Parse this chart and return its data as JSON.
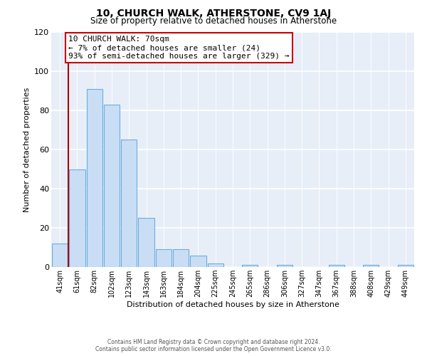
{
  "title": "10, CHURCH WALK, ATHERSTONE, CV9 1AJ",
  "subtitle": "Size of property relative to detached houses in Atherstone",
  "xlabel": "Distribution of detached houses by size in Atherstone",
  "ylabel": "Number of detached properties",
  "bar_labels": [
    "41sqm",
    "61sqm",
    "82sqm",
    "102sqm",
    "123sqm",
    "143sqm",
    "163sqm",
    "184sqm",
    "204sqm",
    "225sqm",
    "245sqm",
    "265sqm",
    "286sqm",
    "306sqm",
    "327sqm",
    "347sqm",
    "367sqm",
    "388sqm",
    "408sqm",
    "429sqm",
    "449sqm"
  ],
  "bar_heights": [
    12,
    50,
    91,
    83,
    65,
    25,
    9,
    9,
    6,
    2,
    0,
    1,
    0,
    1,
    0,
    0,
    1,
    0,
    1,
    0,
    1
  ],
  "bar_color": "#c9ddf5",
  "bar_edge_color": "#6aaee0",
  "marker_line_color": "#aa0000",
  "annotation_title": "10 CHURCH WALK: 70sqm",
  "annotation_line1": "← 7% of detached houses are smaller (24)",
  "annotation_line2": "93% of semi-detached houses are larger (329) →",
  "annotation_box_color": "#ffffff",
  "annotation_box_edge": "#cc0000",
  "ylim": [
    0,
    120
  ],
  "yticks": [
    0,
    20,
    40,
    60,
    80,
    100,
    120
  ],
  "bg_color": "#e8eef8",
  "footer1": "Contains HM Land Registry data © Crown copyright and database right 2024.",
  "footer2": "Contains public sector information licensed under the Open Government Licence v3.0."
}
